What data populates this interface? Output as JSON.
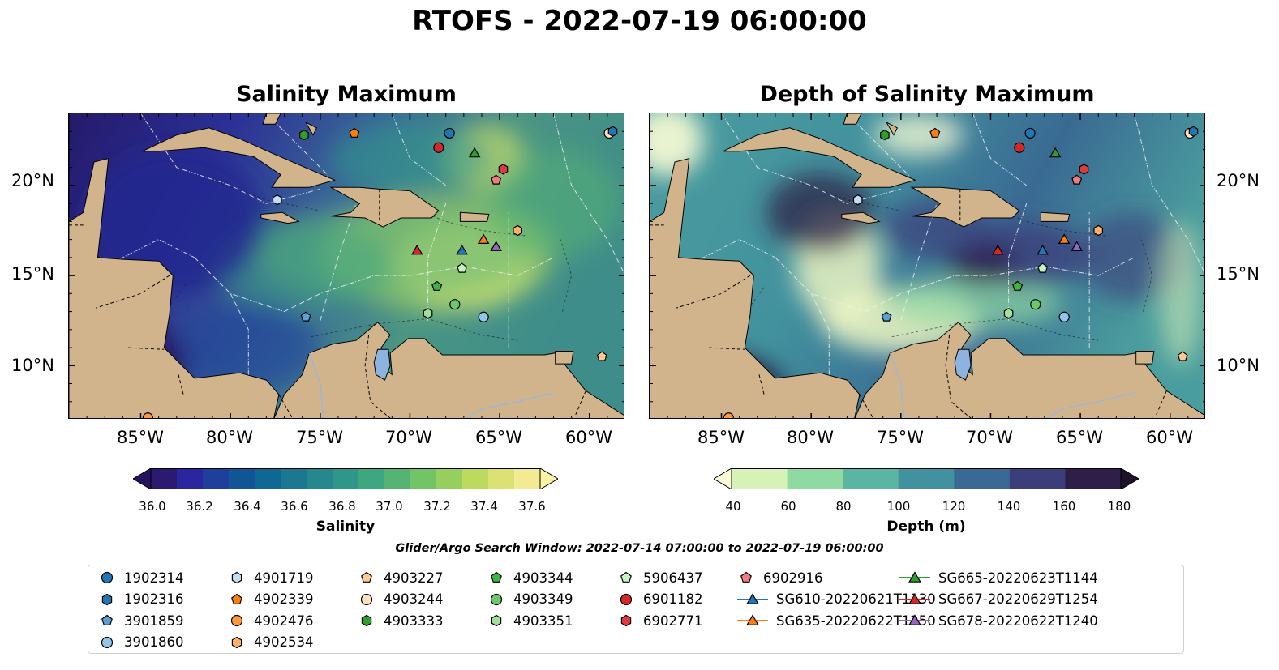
{
  "title": "RTOFS - 2022-07-19 06:00:00",
  "panels": {
    "left_title": "Salinity Maximum",
    "right_title": "Depth of Salinity Maximum"
  },
  "axes": {
    "x_ticks": [
      "85°W",
      "80°W",
      "75°W",
      "70°W",
      "65°W",
      "60°W"
    ],
    "y_ticks": [
      "20°N",
      "15°N",
      "10°N"
    ],
    "lon_range": [
      -89,
      -58
    ],
    "lat_range": [
      7,
      24
    ]
  },
  "colorbars": {
    "salinity": {
      "label": "Salinity",
      "ticks": [
        "36.0",
        "36.2",
        "36.4",
        "36.6",
        "36.8",
        "37.0",
        "37.2",
        "37.4",
        "37.6"
      ],
      "colors": [
        "#2b1a70",
        "#2a26a0",
        "#1e3f9a",
        "#125596",
        "#0f6893",
        "#1b7890",
        "#26888d",
        "#2f978a",
        "#3ea680",
        "#55b474",
        "#73c367",
        "#96cf5e",
        "#bbda5e",
        "#dbe173",
        "#f3ea92"
      ],
      "under_color": "#25135e",
      "over_color": "#fbf3a6"
    },
    "depth": {
      "label": "Depth (m)",
      "ticks": [
        "40",
        "60",
        "80",
        "100",
        "120",
        "140",
        "160",
        "180"
      ],
      "colors": [
        "#d8f1b8",
        "#8fd9a3",
        "#5ab6a2",
        "#42919e",
        "#3a6a93",
        "#3c3e7c",
        "#2d1f45"
      ],
      "under_color": "#fbfdd6",
      "over_color": "#1e1229"
    }
  },
  "search_window": "Glider/Argo Search Window: 2022-07-14 07:00:00 to 2022-07-19 06:00:00",
  "legend": [
    {
      "label": "1902314",
      "marker": "circle",
      "color": "#1f77b4"
    },
    {
      "label": "1902316",
      "marker": "hexagon",
      "color": "#1f77b4"
    },
    {
      "label": "3901859",
      "marker": "pentagon",
      "color": "#5b9fd4"
    },
    {
      "label": "3901860",
      "marker": "circle",
      "color": "#92c5ea"
    },
    {
      "label": "4901719",
      "marker": "hexagon",
      "color": "#c6dcf0"
    },
    {
      "label": "4902339",
      "marker": "pentagon",
      "color": "#ff7f0e"
    },
    {
      "label": "4902476",
      "marker": "circle",
      "color": "#ff9a3c"
    },
    {
      "label": "4902534",
      "marker": "hexagon",
      "color": "#ffb266"
    },
    {
      "label": "4903227",
      "marker": "pentagon",
      "color": "#ffc992"
    },
    {
      "label": "4903244",
      "marker": "circle",
      "color": "#ffe1c2"
    },
    {
      "label": "4903333",
      "marker": "hexagon",
      "color": "#2ca02c"
    },
    {
      "label": "4903344",
      "marker": "pentagon",
      "color": "#3fb43f"
    },
    {
      "label": "4903349",
      "marker": "circle",
      "color": "#6cc86c"
    },
    {
      "label": "4903351",
      "marker": "hexagon",
      "color": "#9fe09b"
    },
    {
      "label": "5906437",
      "marker": "pentagon",
      "color": "#c8f2c4"
    },
    {
      "label": "6901182",
      "marker": "circle",
      "color": "#d62728"
    },
    {
      "label": "6902771",
      "marker": "hexagon",
      "color": "#e03a3c"
    },
    {
      "label": "6902916",
      "marker": "pentagon",
      "color": "#f07a80"
    },
    {
      "label": "SG610-20220621T1130",
      "marker": "triangle",
      "color": "#1f77b4",
      "line": true
    },
    {
      "label": "SG635-20220622T1250",
      "marker": "triangle",
      "color": "#ff7f0e",
      "line": true
    },
    {
      "label": "SG665-20220623T1144",
      "marker": "triangle",
      "color": "#2ca02c",
      "line": true
    },
    {
      "label": "SG667-20220629T1254",
      "marker": "triangle",
      "color": "#d62728",
      "line": true
    },
    {
      "label": "SG678-20220622T1240",
      "marker": "triangle",
      "color": "#9467bd",
      "line": true
    }
  ],
  "markers": [
    {
      "id": "1902314",
      "lon": -67.8,
      "lat": 22.9
    },
    {
      "id": "6901182",
      "lon": -68.4,
      "lat": 22.1
    },
    {
      "id": "SG665-20220623T1144",
      "lon": -66.4,
      "lat": 21.8
    },
    {
      "id": "6902771",
      "lon": -64.8,
      "lat": 20.9
    },
    {
      "id": "6902916",
      "lon": -65.2,
      "lat": 20.3
    },
    {
      "id": "4903333",
      "lon": -75.9,
      "lat": 22.8
    },
    {
      "id": "4902339",
      "lon": -73.1,
      "lat": 22.9
    },
    {
      "id": "4903244",
      "lon": -58.9,
      "lat": 22.9
    },
    {
      "id": "1902316",
      "lon": -58.7,
      "lat": 23.0
    },
    {
      "id": "4901719",
      "lon": -77.4,
      "lat": 19.2
    },
    {
      "id": "SG667-20220629T1254",
      "lon": -69.6,
      "lat": 16.4
    },
    {
      "id": "SG610-20220621T1130",
      "lon": -67.1,
      "lat": 16.4
    },
    {
      "id": "SG635-20220622T1250",
      "lon": -65.9,
      "lat": 17.0
    },
    {
      "id": "SG678-20220622T1240",
      "lon": -65.2,
      "lat": 16.6
    },
    {
      "id": "4902534",
      "lon": -64.0,
      "lat": 17.5
    },
    {
      "id": "5906437",
      "lon": -67.1,
      "lat": 15.4
    },
    {
      "id": "4903344",
      "lon": -68.5,
      "lat": 14.4
    },
    {
      "id": "4903349",
      "lon": -67.5,
      "lat": 13.4
    },
    {
      "id": "4903351",
      "lon": -69.0,
      "lat": 12.9
    },
    {
      "id": "3901860",
      "lon": -65.9,
      "lat": 12.7
    },
    {
      "id": "3901859",
      "lon": -75.8,
      "lat": 12.7
    },
    {
      "id": "4903227",
      "lon": -59.3,
      "lat": 10.5
    },
    {
      "id": "4902476",
      "lon": -84.6,
      "lat": 7.1
    }
  ]
}
